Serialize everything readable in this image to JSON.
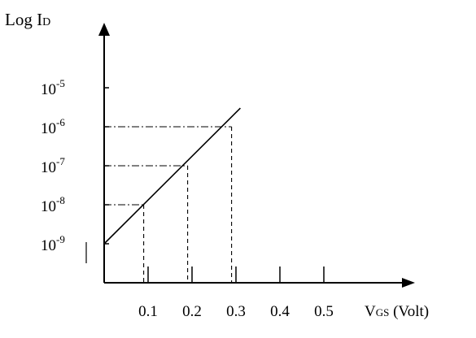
{
  "chart_data": {
    "type": "line",
    "y_scale": "log",
    "ylabel": {
      "main": "Log I",
      "sub": "D"
    },
    "xlabel": {
      "main": "V",
      "sub": "GS",
      "unit": " (Volt)"
    },
    "x_ticks": [
      {
        "value": 0.1,
        "label": "0.1"
      },
      {
        "value": 0.2,
        "label": "0.2"
      },
      {
        "value": 0.3,
        "label": "0.3"
      },
      {
        "value": 0.4,
        "label": "0.4"
      },
      {
        "value": 0.5,
        "label": "0.5"
      }
    ],
    "y_ticks": [
      {
        "value": 1e-09,
        "base": "10",
        "exp": "-9"
      },
      {
        "value": 1e-08,
        "base": "10",
        "exp": "-8"
      },
      {
        "value": 1e-07,
        "base": "10",
        "exp": "-7"
      },
      {
        "value": 1e-06,
        "base": "10",
        "exp": "-6"
      },
      {
        "value": 1e-05,
        "base": "10",
        "exp": "-5"
      }
    ],
    "series": [
      {
        "x": [
          0,
          0.31
        ],
        "y": [
          1e-09,
          3e-06
        ]
      }
    ],
    "guides": [
      {
        "x": 0.09,
        "y": 1e-08
      },
      {
        "x": 0.19,
        "y": 1e-07
      },
      {
        "x": 0.29,
        "y": 1e-06
      }
    ]
  }
}
